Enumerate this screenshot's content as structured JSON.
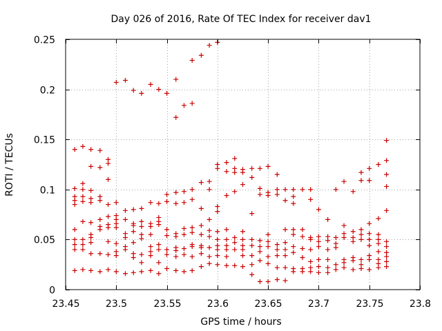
{
  "chart_data": {
    "type": "scatter",
    "title": "Day 026 of 2016, Rate Of TEC Index for receiver dav1",
    "xlabel": "GPS time / hours",
    "ylabel": "ROTI / TECUs",
    "xlim": [
      23.45,
      23.8
    ],
    "ylim": [
      0,
      0.25
    ],
    "xticks": [
      "23.45",
      "23.5",
      "23.55",
      "23.6",
      "23.65",
      "23.7",
      "23.75",
      "23.8"
    ],
    "yticks": [
      "0",
      "0.05",
      "0.1",
      "0.15",
      "0.2",
      "0.25"
    ],
    "grid": true,
    "marker": "plus",
    "color": "#cc0000",
    "points": [
      [
        23.5,
        0.207
      ],
      [
        23.509,
        0.209
      ],
      [
        23.517,
        0.199
      ],
      [
        23.525,
        0.196
      ],
      [
        23.534,
        0.205
      ],
      [
        23.542,
        0.2
      ],
      [
        23.55,
        0.196
      ],
      [
        23.559,
        0.21
      ],
      [
        23.559,
        0.172
      ],
      [
        23.567,
        0.184
      ],
      [
        23.575,
        0.186
      ],
      [
        23.575,
        0.229
      ],
      [
        23.584,
        0.234
      ],
      [
        23.592,
        0.244
      ],
      [
        23.6,
        0.247
      ],
      [
        23.459,
        0.14
      ],
      [
        23.467,
        0.143
      ],
      [
        23.475,
        0.14
      ],
      [
        23.475,
        0.123
      ],
      [
        23.484,
        0.139
      ],
      [
        23.484,
        0.122
      ],
      [
        23.492,
        0.13
      ],
      [
        23.492,
        0.126
      ],
      [
        23.492,
        0.11
      ],
      [
        23.459,
        0.101
      ],
      [
        23.459,
        0.093
      ],
      [
        23.459,
        0.089
      ],
      [
        23.459,
        0.085
      ],
      [
        23.467,
        0.106
      ],
      [
        23.467,
        0.1
      ],
      [
        23.467,
        0.093
      ],
      [
        23.467,
        0.088
      ],
      [
        23.475,
        0.099
      ],
      [
        23.475,
        0.091
      ],
      [
        23.475,
        0.087
      ],
      [
        23.484,
        0.093
      ],
      [
        23.484,
        0.089
      ],
      [
        23.492,
        0.085
      ],
      [
        23.459,
        0.06
      ],
      [
        23.459,
        0.05
      ],
      [
        23.459,
        0.045
      ],
      [
        23.459,
        0.04
      ],
      [
        23.459,
        0.019
      ],
      [
        23.467,
        0.068
      ],
      [
        23.467,
        0.05
      ],
      [
        23.467,
        0.045
      ],
      [
        23.467,
        0.04
      ],
      [
        23.467,
        0.02
      ],
      [
        23.475,
        0.067
      ],
      [
        23.475,
        0.055
      ],
      [
        23.475,
        0.052
      ],
      [
        23.475,
        0.047
      ],
      [
        23.475,
        0.036
      ],
      [
        23.475,
        0.019
      ],
      [
        23.484,
        0.07
      ],
      [
        23.484,
        0.063
      ],
      [
        23.484,
        0.06
      ],
      [
        23.484,
        0.036
      ],
      [
        23.484,
        0.018
      ],
      [
        23.492,
        0.073
      ],
      [
        23.492,
        0.065
      ],
      [
        23.492,
        0.062
      ],
      [
        23.492,
        0.048
      ],
      [
        23.492,
        0.035
      ],
      [
        23.492,
        0.02
      ],
      [
        23.5,
        0.087
      ],
      [
        23.5,
        0.074
      ],
      [
        23.5,
        0.07
      ],
      [
        23.5,
        0.066
      ],
      [
        23.5,
        0.062
      ],
      [
        23.5,
        0.046
      ],
      [
        23.5,
        0.038
      ],
      [
        23.5,
        0.034
      ],
      [
        23.5,
        0.018
      ],
      [
        23.509,
        0.079
      ],
      [
        23.509,
        0.07
      ],
      [
        23.509,
        0.056
      ],
      [
        23.509,
        0.052
      ],
      [
        23.509,
        0.043
      ],
      [
        23.509,
        0.04
      ],
      [
        23.509,
        0.016
      ],
      [
        23.517,
        0.08
      ],
      [
        23.517,
        0.066
      ],
      [
        23.517,
        0.064
      ],
      [
        23.517,
        0.058
      ],
      [
        23.517,
        0.047
      ],
      [
        23.517,
        0.036
      ],
      [
        23.517,
        0.032
      ],
      [
        23.517,
        0.017
      ],
      [
        23.525,
        0.081
      ],
      [
        23.525,
        0.068
      ],
      [
        23.525,
        0.063
      ],
      [
        23.525,
        0.055
      ],
      [
        23.525,
        0.051
      ],
      [
        23.525,
        0.035
      ],
      [
        23.525,
        0.027
      ],
      [
        23.525,
        0.018
      ],
      [
        23.534,
        0.087
      ],
      [
        23.534,
        0.066
      ],
      [
        23.534,
        0.063
      ],
      [
        23.534,
        0.055
      ],
      [
        23.534,
        0.043
      ],
      [
        23.534,
        0.038
      ],
      [
        23.534,
        0.034
      ],
      [
        23.534,
        0.019
      ],
      [
        23.542,
        0.086
      ],
      [
        23.542,
        0.072
      ],
      [
        23.542,
        0.068
      ],
      [
        23.542,
        0.065
      ],
      [
        23.542,
        0.045
      ],
      [
        23.542,
        0.04
      ],
      [
        23.542,
        0.027
      ],
      [
        23.542,
        0.016
      ],
      [
        23.55,
        0.095
      ],
      [
        23.55,
        0.088
      ],
      [
        23.55,
        0.06
      ],
      [
        23.55,
        0.054
      ],
      [
        23.55,
        0.04
      ],
      [
        23.55,
        0.035
      ],
      [
        23.55,
        0.021
      ],
      [
        23.559,
        0.097
      ],
      [
        23.559,
        0.086
      ],
      [
        23.559,
        0.056
      ],
      [
        23.559,
        0.053
      ],
      [
        23.559,
        0.042
      ],
      [
        23.559,
        0.039
      ],
      [
        23.559,
        0.033
      ],
      [
        23.559,
        0.019
      ],
      [
        23.567,
        0.098
      ],
      [
        23.567,
        0.087
      ],
      [
        23.567,
        0.061
      ],
      [
        23.567,
        0.055
      ],
      [
        23.567,
        0.041
      ],
      [
        23.567,
        0.035
      ],
      [
        23.567,
        0.018
      ],
      [
        23.575,
        0.1
      ],
      [
        23.575,
        0.09
      ],
      [
        23.575,
        0.062
      ],
      [
        23.575,
        0.057
      ],
      [
        23.575,
        0.045
      ],
      [
        23.575,
        0.043
      ],
      [
        23.575,
        0.033
      ],
      [
        23.575,
        0.019
      ],
      [
        23.584,
        0.107
      ],
      [
        23.584,
        0.081
      ],
      [
        23.584,
        0.064
      ],
      [
        23.584,
        0.055
      ],
      [
        23.584,
        0.044
      ],
      [
        23.584,
        0.042
      ],
      [
        23.584,
        0.036
      ],
      [
        23.584,
        0.023
      ],
      [
        23.592,
        0.108
      ],
      [
        23.592,
        0.1
      ],
      [
        23.592,
        0.07
      ],
      [
        23.592,
        0.059
      ],
      [
        23.592,
        0.053
      ],
      [
        23.592,
        0.042
      ],
      [
        23.592,
        0.033
      ],
      [
        23.592,
        0.026
      ],
      [
        23.6,
        0.125
      ],
      [
        23.6,
        0.121
      ],
      [
        23.6,
        0.083
      ],
      [
        23.6,
        0.078
      ],
      [
        23.6,
        0.058
      ],
      [
        23.6,
        0.05
      ],
      [
        23.6,
        0.044
      ],
      [
        23.6,
        0.04
      ],
      [
        23.6,
        0.034
      ],
      [
        23.6,
        0.025
      ],
      [
        23.609,
        0.127
      ],
      [
        23.609,
        0.118
      ],
      [
        23.609,
        0.094
      ],
      [
        23.609,
        0.06
      ],
      [
        23.609,
        0.05
      ],
      [
        23.609,
        0.044
      ],
      [
        23.609,
        0.04
      ],
      [
        23.609,
        0.033
      ],
      [
        23.609,
        0.024
      ],
      [
        23.617,
        0.131
      ],
      [
        23.617,
        0.121
      ],
      [
        23.617,
        0.117
      ],
      [
        23.617,
        0.098
      ],
      [
        23.617,
        0.052
      ],
      [
        23.617,
        0.047
      ],
      [
        23.617,
        0.04
      ],
      [
        23.617,
        0.024
      ],
      [
        23.625,
        0.12
      ],
      [
        23.625,
        0.117
      ],
      [
        23.625,
        0.105
      ],
      [
        23.625,
        0.058
      ],
      [
        23.625,
        0.05
      ],
      [
        23.625,
        0.044
      ],
      [
        23.625,
        0.04
      ],
      [
        23.625,
        0.034
      ],
      [
        23.625,
        0.023
      ],
      [
        23.634,
        0.121
      ],
      [
        23.634,
        0.112
      ],
      [
        23.634,
        0.076
      ],
      [
        23.634,
        0.05
      ],
      [
        23.634,
        0.044
      ],
      [
        23.634,
        0.034
      ],
      [
        23.634,
        0.025
      ],
      [
        23.634,
        0.015
      ],
      [
        23.642,
        0.121
      ],
      [
        23.642,
        0.101
      ],
      [
        23.642,
        0.095
      ],
      [
        23.642,
        0.049
      ],
      [
        23.642,
        0.043
      ],
      [
        23.642,
        0.038
      ],
      [
        23.642,
        0.029
      ],
      [
        23.642,
        0.008
      ],
      [
        23.65,
        0.123
      ],
      [
        23.65,
        0.097
      ],
      [
        23.65,
        0.094
      ],
      [
        23.65,
        0.055
      ],
      [
        23.65,
        0.048
      ],
      [
        23.65,
        0.043
      ],
      [
        23.65,
        0.033
      ],
      [
        23.65,
        0.026
      ],
      [
        23.65,
        0.008
      ],
      [
        23.659,
        0.115
      ],
      [
        23.659,
        0.1
      ],
      [
        23.659,
        0.095
      ],
      [
        23.659,
        0.045
      ],
      [
        23.659,
        0.04
      ],
      [
        23.659,
        0.034
      ],
      [
        23.659,
        0.022
      ],
      [
        23.659,
        0.01
      ],
      [
        23.667,
        0.1
      ],
      [
        23.667,
        0.089
      ],
      [
        23.667,
        0.06
      ],
      [
        23.667,
        0.047
      ],
      [
        23.667,
        0.04
      ],
      [
        23.667,
        0.034
      ],
      [
        23.667,
        0.022
      ],
      [
        23.667,
        0.009
      ],
      [
        23.675,
        0.1
      ],
      [
        23.675,
        0.093
      ],
      [
        23.675,
        0.086
      ],
      [
        23.675,
        0.06
      ],
      [
        23.675,
        0.055
      ],
      [
        23.675,
        0.043
      ],
      [
        23.675,
        0.037
      ],
      [
        23.675,
        0.021
      ],
      [
        23.675,
        0.018
      ],
      [
        23.684,
        0.1
      ],
      [
        23.684,
        0.06
      ],
      [
        23.684,
        0.053
      ],
      [
        23.684,
        0.041
      ],
      [
        23.684,
        0.032
      ],
      [
        23.684,
        0.021
      ],
      [
        23.684,
        0.018
      ],
      [
        23.692,
        0.1
      ],
      [
        23.692,
        0.09
      ],
      [
        23.692,
        0.052
      ],
      [
        23.692,
        0.05
      ],
      [
        23.692,
        0.04
      ],
      [
        23.692,
        0.028
      ],
      [
        23.692,
        0.022
      ],
      [
        23.692,
        0.018
      ],
      [
        23.7,
        0.08
      ],
      [
        23.7,
        0.053
      ],
      [
        23.7,
        0.048
      ],
      [
        23.7,
        0.043
      ],
      [
        23.7,
        0.03
      ],
      [
        23.7,
        0.023
      ],
      [
        23.7,
        0.017
      ],
      [
        23.709,
        0.07
      ],
      [
        23.709,
        0.053
      ],
      [
        23.709,
        0.049
      ],
      [
        23.709,
        0.04
      ],
      [
        23.709,
        0.03
      ],
      [
        23.709,
        0.022
      ],
      [
        23.709,
        0.017
      ],
      [
        23.717,
        0.1
      ],
      [
        23.717,
        0.052
      ],
      [
        23.717,
        0.046
      ],
      [
        23.717,
        0.042
      ],
      [
        23.717,
        0.025
      ],
      [
        23.717,
        0.02
      ],
      [
        23.725,
        0.108
      ],
      [
        23.725,
        0.064
      ],
      [
        23.725,
        0.056
      ],
      [
        23.725,
        0.052
      ],
      [
        23.725,
        0.03
      ],
      [
        23.725,
        0.027
      ],
      [
        23.725,
        0.022
      ],
      [
        23.734,
        0.098
      ],
      [
        23.734,
        0.058
      ],
      [
        23.734,
        0.052
      ],
      [
        23.734,
        0.048
      ],
      [
        23.734,
        0.032
      ],
      [
        23.734,
        0.029
      ],
      [
        23.734,
        0.02
      ],
      [
        23.742,
        0.117
      ],
      [
        23.742,
        0.109
      ],
      [
        23.742,
        0.06
      ],
      [
        23.742,
        0.055
      ],
      [
        23.742,
        0.05
      ],
      [
        23.742,
        0.03
      ],
      [
        23.742,
        0.025
      ],
      [
        23.742,
        0.021
      ],
      [
        23.75,
        0.121
      ],
      [
        23.75,
        0.109
      ],
      [
        23.75,
        0.066
      ],
      [
        23.75,
        0.056
      ],
      [
        23.75,
        0.05
      ],
      [
        23.75,
        0.044
      ],
      [
        23.75,
        0.034
      ],
      [
        23.75,
        0.03
      ],
      [
        23.75,
        0.02
      ],
      [
        23.759,
        0.125
      ],
      [
        23.759,
        0.071
      ],
      [
        23.759,
        0.055
      ],
      [
        23.759,
        0.05
      ],
      [
        23.759,
        0.046
      ],
      [
        23.759,
        0.038
      ],
      [
        23.759,
        0.03
      ],
      [
        23.759,
        0.026
      ],
      [
        23.759,
        0.022
      ],
      [
        23.767,
        0.149
      ],
      [
        23.767,
        0.129
      ],
      [
        23.767,
        0.115
      ],
      [
        23.767,
        0.103
      ],
      [
        23.767,
        0.079
      ],
      [
        23.767,
        0.048
      ],
      [
        23.767,
        0.043
      ],
      [
        23.767,
        0.037
      ],
      [
        23.767,
        0.033
      ],
      [
        23.767,
        0.028
      ],
      [
        23.767,
        0.023
      ]
    ]
  }
}
